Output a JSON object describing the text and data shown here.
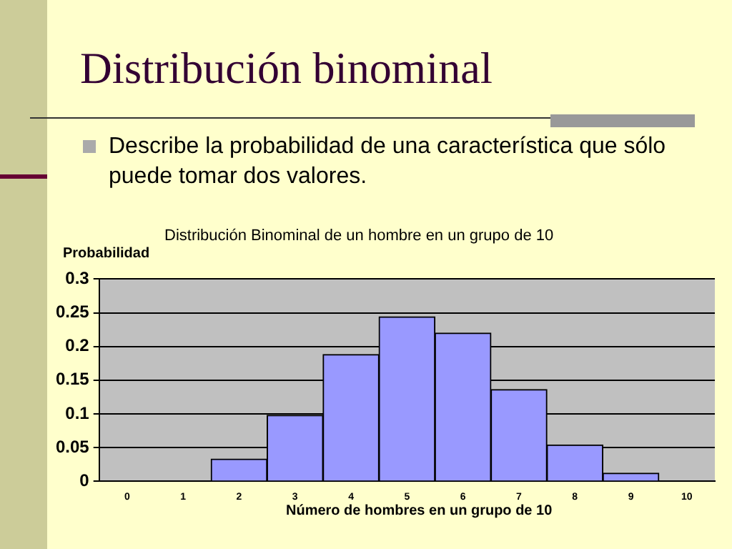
{
  "chart_data": {
    "type": "bar",
    "title": "Distribución binominal",
    "subtitle": "Describe la probabilidad de una característica que sólo puede tomar dos valores.",
    "annotations": [
      "Distribución Binominal de un hombre en un grupo de 10"
    ],
    "ylabel": "Probabilidad",
    "xlabel": "Número de hombres en un grupo de 10",
    "categories": [
      "0",
      "1",
      "2",
      "3",
      "4",
      "5",
      "6",
      "7",
      "8",
      "9",
      "10"
    ],
    "values": [
      0,
      0,
      0.033,
      0.098,
      0.188,
      0.244,
      0.22,
      0.136,
      0.054,
      0.012,
      0
    ],
    "color": "#9999ff",
    "ylim": [
      0,
      0.3
    ],
    "yticks": [
      0,
      0.05,
      0.1,
      0.15,
      0.2,
      0.25,
      0.3
    ],
    "grid": "y",
    "legend": false
  }
}
